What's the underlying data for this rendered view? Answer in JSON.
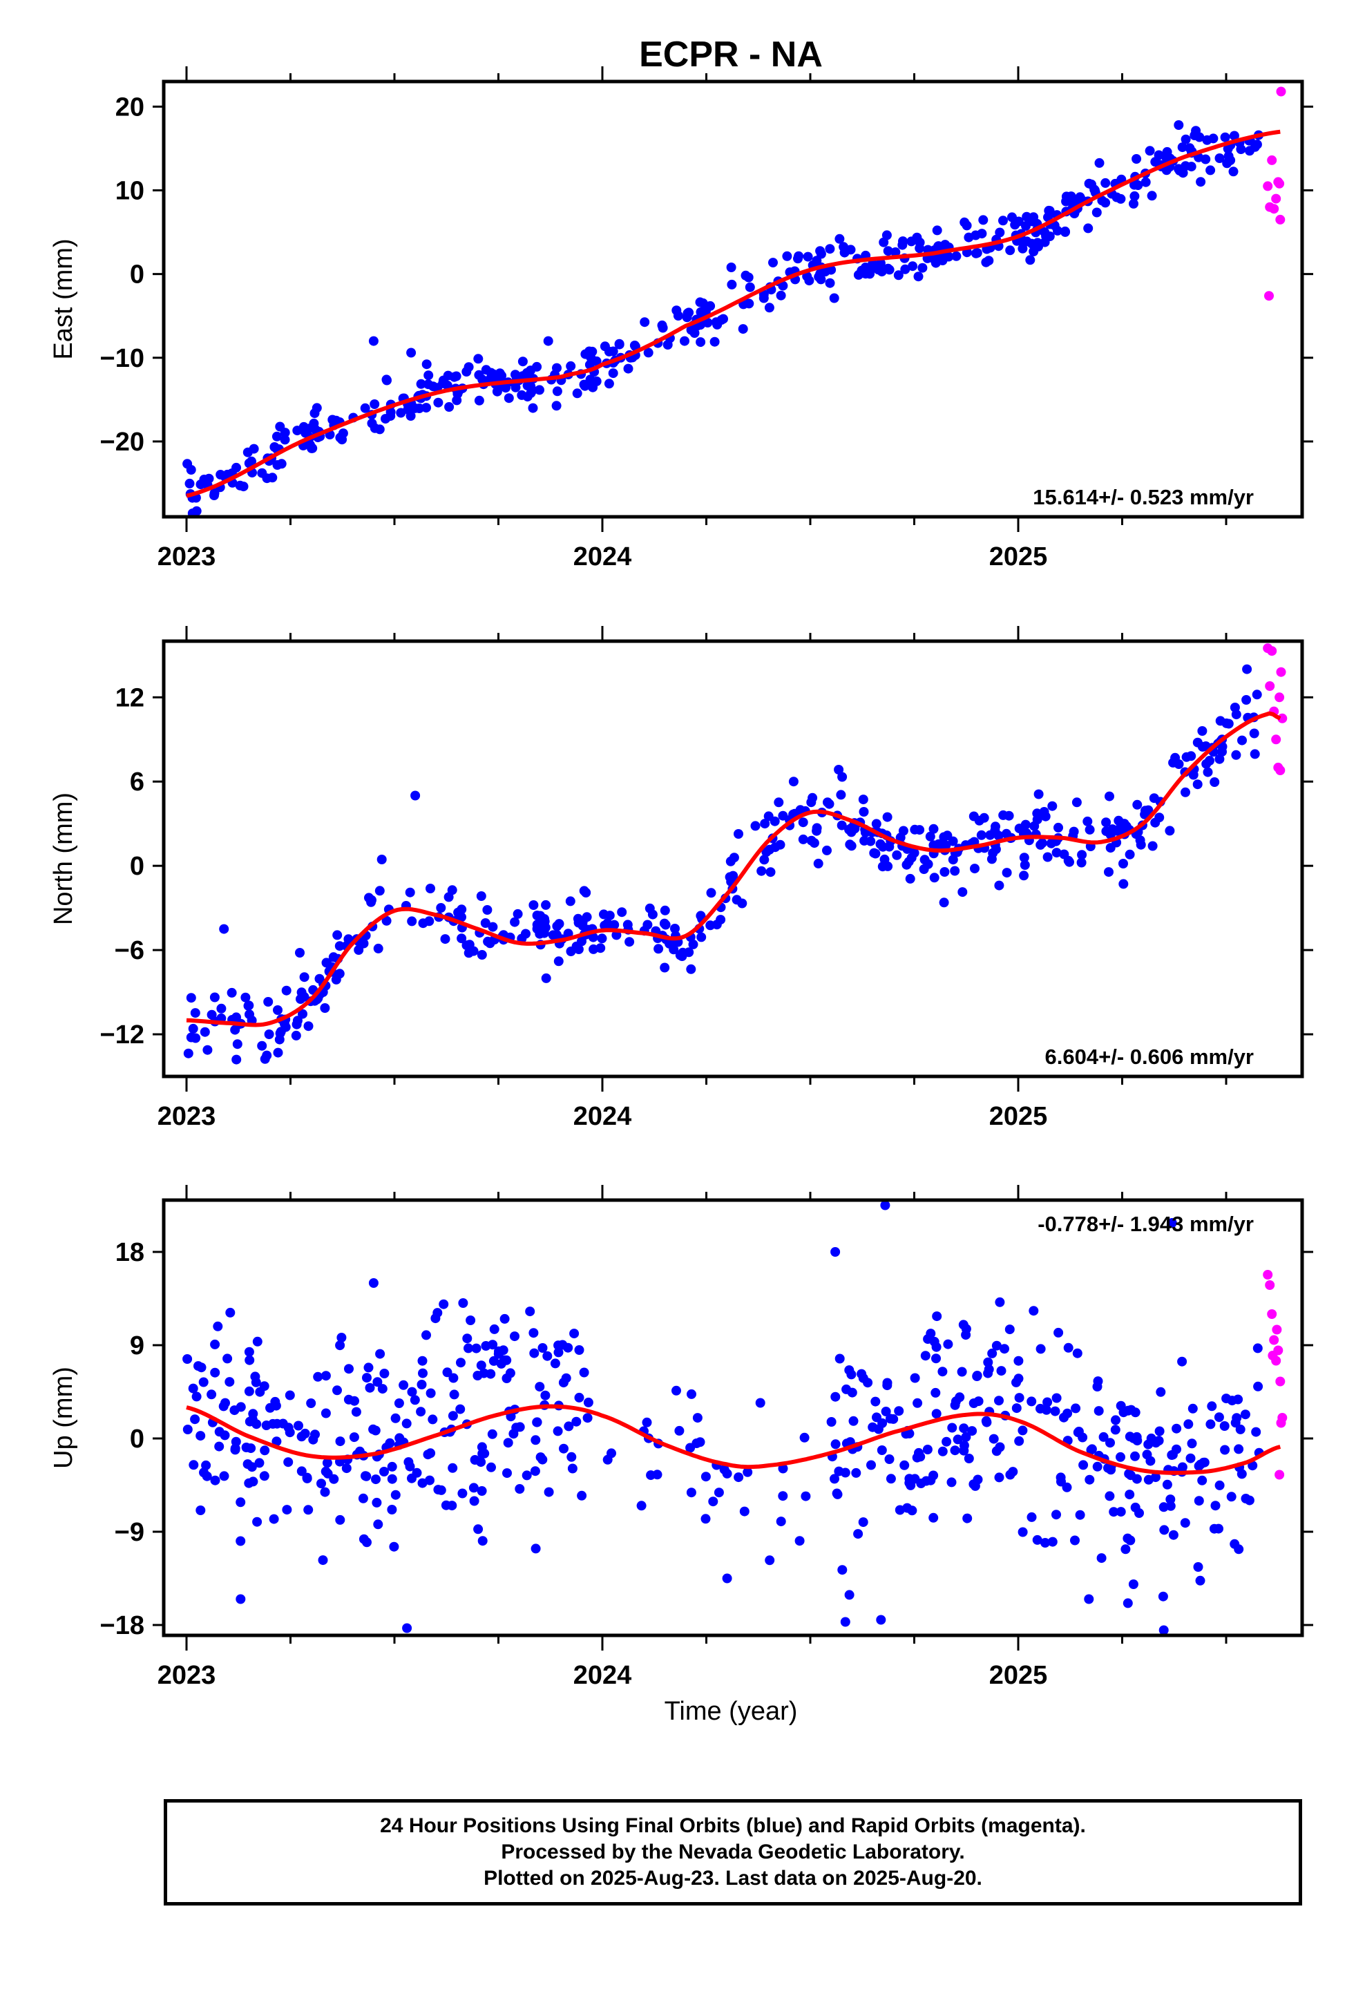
{
  "chart_data": {
    "type": "scatter",
    "title": "ECPR - NA",
    "xlabel": "Time (year)",
    "x_tick_labels": [
      "2023",
      "2024",
      "2025"
    ],
    "xlim": [
      2022.95,
      2025.69
    ],
    "colors": {
      "final": "#0000ff",
      "rapid": "#ff00ff",
      "fit": "#ff0000"
    },
    "panels": [
      {
        "component": "east",
        "ylabel": "East (mm)",
        "ylim": [
          -29,
          23
        ],
        "yticks": [
          20,
          10,
          0,
          -10,
          -20
        ],
        "y_tick_labels": [
          "20",
          "10",
          "0",
          "−10",
          "−20"
        ],
        "rate_label": "15.614+/- 0.523 mm/yr",
        "rate_position": "bottom-right",
        "fit": {
          "x": [
            2023.0,
            2023.3,
            2023.6,
            2023.9,
            2024.0,
            2024.2,
            2024.5,
            2024.8,
            2025.0,
            2025.2,
            2025.4,
            2025.63
          ],
          "y": [
            -26.5,
            -19.5,
            -14.2,
            -12.3,
            -10.8,
            -6.2,
            0.5,
            2.5,
            4.5,
            9.5,
            14.0,
            17.0
          ]
        },
        "final_segments": [
          {
            "x": [
              2023.0,
              2023.3,
              2023.6,
              2023.9,
              2024.0,
              2024.2,
              2024.5,
              2024.8,
              2025.0,
              2025.2,
              2025.4,
              2025.58
            ],
            "y": [
              -26.5,
              -19.5,
              -14.2,
              -12.3,
              -10.8,
              -6.2,
              0.5,
              2.5,
              4.5,
              9.5,
              14.0,
              15.8
            ],
            "count": 470,
            "spread": 1.4
          }
        ],
        "rapid_points": [
          [
            2025.6,
            10.5
          ],
          [
            2025.61,
            13.6
          ],
          [
            2025.605,
            8.0
          ],
          [
            2025.615,
            7.8
          ],
          [
            2025.625,
            11.0
          ],
          [
            2025.62,
            9.0
          ],
          [
            2025.603,
            -2.6
          ],
          [
            2025.63,
            6.5
          ],
          [
            2025.632,
            21.8
          ],
          [
            2025.628,
            10.8
          ]
        ],
        "outliers": [
          [
            2023.45,
            -8.0
          ],
          [
            2023.54,
            -9.4
          ],
          [
            2023.87,
            -8.0
          ],
          [
            2024.31,
            0.8
          ],
          [
            2024.55,
            0.5
          ]
        ]
      },
      {
        "component": "north",
        "ylabel": "North (mm)",
        "ylim": [
          -15,
          16
        ],
        "yticks": [
          12,
          6,
          0,
          -6,
          -12
        ],
        "y_tick_labels": [
          "12",
          "6",
          "0",
          "−6",
          "−12"
        ],
        "rate_label": "6.604+/- 0.606 mm/yr",
        "rate_position": "bottom-right",
        "fit": {
          "x": [
            2023.0,
            2023.1,
            2023.2,
            2023.3,
            2023.4,
            2023.5,
            2023.6,
            2023.7,
            2023.8,
            2023.9,
            2024.0,
            2024.1,
            2024.2,
            2024.3,
            2024.4,
            2024.5,
            2024.6,
            2024.7,
            2024.8,
            2024.9,
            2025.0,
            2025.1,
            2025.2,
            2025.3,
            2025.4,
            2025.5,
            2025.6,
            2025.63
          ],
          "y": [
            -11.0,
            -11.2,
            -11.2,
            -9.5,
            -5.5,
            -3.2,
            -3.5,
            -4.5,
            -5.5,
            -5.3,
            -4.6,
            -4.8,
            -5.0,
            -2.0,
            1.8,
            3.8,
            3.2,
            1.8,
            1.1,
            1.4,
            2.0,
            2.0,
            1.7,
            3.0,
            6.5,
            9.2,
            10.8,
            10.5
          ]
        },
        "final_segments": [
          {
            "x": [
              2023.0,
              2023.1,
              2023.2,
              2023.3,
              2023.4,
              2023.5,
              2023.6,
              2023.7,
              2023.8,
              2023.9,
              2024.0,
              2024.1,
              2024.2,
              2024.3,
              2024.4,
              2024.5,
              2024.6,
              2024.7,
              2024.8,
              2024.9,
              2025.0,
              2025.1,
              2025.2,
              2025.3,
              2025.4,
              2025.5,
              2025.58
            ],
            "y": [
              -11.0,
              -11.2,
              -11.2,
              -9.5,
              -5.5,
              -3.2,
              -3.5,
              -4.5,
              -5.5,
              -5.3,
              -4.6,
              -4.8,
              -5.0,
              -2.0,
              1.8,
              3.8,
              3.2,
              1.8,
              1.1,
              1.4,
              2.0,
              2.0,
              1.7,
              3.0,
              6.5,
              9.2,
              10.8
            ],
            "count": 470,
            "spread": 1.3
          }
        ],
        "rapid_points": [
          [
            2025.6,
            15.5
          ],
          [
            2025.61,
            15.3
          ],
          [
            2025.605,
            12.8
          ],
          [
            2025.615,
            11.0
          ],
          [
            2025.62,
            9.0
          ],
          [
            2025.625,
            7.0
          ],
          [
            2025.63,
            6.8
          ],
          [
            2025.632,
            13.8
          ],
          [
            2025.628,
            12.0
          ],
          [
            2025.635,
            10.5
          ]
        ],
        "outliers": [
          [
            2023.55,
            5.0
          ],
          [
            2023.09,
            -4.5
          ],
          [
            2023.12,
            -13.8
          ],
          [
            2024.46,
            6.0
          ],
          [
            2025.55,
            14.0
          ]
        ]
      },
      {
        "component": "up",
        "ylabel": "Up (mm)",
        "ylim": [
          -19,
          23
        ],
        "yticks": [
          18,
          9,
          0,
          -9,
          -18
        ],
        "y_tick_labels": [
          "18",
          "9",
          "0",
          "−9",
          "−18"
        ],
        "rate_label": "-0.778+/- 1.943 mm/yr",
        "rate_position": "top-right",
        "fit": {
          "x": [
            2023.0,
            2023.15,
            2023.3,
            2023.45,
            2023.6,
            2023.75,
            2023.88,
            2024.0,
            2024.15,
            2024.3,
            2024.4,
            2024.55,
            2024.7,
            2024.88,
            2025.0,
            2025.15,
            2025.3,
            2025.45,
            2025.55,
            2025.63
          ],
          "y": [
            3.0,
            0.2,
            -1.7,
            -1.5,
            0.3,
            2.3,
            3.1,
            2.2,
            -0.6,
            -2.5,
            -2.6,
            -1.4,
            0.6,
            2.3,
            1.7,
            -1.3,
            -3.1,
            -3.2,
            -2.3,
            -0.8
          ]
        },
        "final_segments": [
          {
            "x": [
              2023.0,
              2023.15,
              2023.3,
              2023.45,
              2023.6,
              2023.75,
              2023.88,
              2023.97
            ],
            "y": [
              3.0,
              0.2,
              -1.7,
              -1.5,
              0.3,
              2.3,
              3.1,
              2.6
            ],
            "count": 260,
            "spread": 5.2
          },
          {
            "x": [
              2024.0,
              2024.15,
              2024.3,
              2024.4,
              2024.5
            ],
            "y": [
              2.2,
              -0.6,
              -2.5,
              -2.6,
              -1.9
            ],
            "count": 35,
            "spread": 3.5
          },
          {
            "x": [
              2024.55,
              2024.7,
              2024.88,
              2025.0,
              2025.15,
              2025.3,
              2025.45,
              2025.58
            ],
            "y": [
              -1.4,
              0.6,
              2.3,
              1.7,
              -1.3,
              -3.1,
              -3.2,
              -2.0
            ],
            "count": 270,
            "spread": 5.0
          }
        ],
        "rapid_points": [
          [
            2025.6,
            15.8
          ],
          [
            2025.605,
            14.8
          ],
          [
            2025.61,
            12.0
          ],
          [
            2025.615,
            9.5
          ],
          [
            2025.62,
            7.5
          ],
          [
            2025.625,
            8.5
          ],
          [
            2025.63,
            5.5
          ],
          [
            2025.632,
            1.5
          ],
          [
            2025.628,
            -3.5
          ],
          [
            2025.635,
            2.0
          ],
          [
            2025.612,
            8.0
          ],
          [
            2025.622,
            10.5
          ]
        ],
        "outliers": [
          [
            2024.68,
            22.5
          ],
          [
            2025.37,
            20.8
          ],
          [
            2024.56,
            18.0
          ],
          [
            2023.45,
            15.0
          ],
          [
            2024.67,
            -17.5
          ],
          [
            2023.53,
            -18.3
          ],
          [
            2025.35,
            -18.5
          ],
          [
            2025.17,
            -15.5
          ],
          [
            2023.13,
            -15.5
          ],
          [
            2024.3,
            -13.5
          ]
        ]
      }
    ]
  },
  "caption": {
    "line1": "24 Hour Positions Using Final Orbits (blue) and Rapid Orbits (magenta).",
    "line2": "Processed by the Nevada Geodetic Laboratory.",
    "line3": "Plotted on 2025-Aug-23. Last data on 2025-Aug-20."
  }
}
